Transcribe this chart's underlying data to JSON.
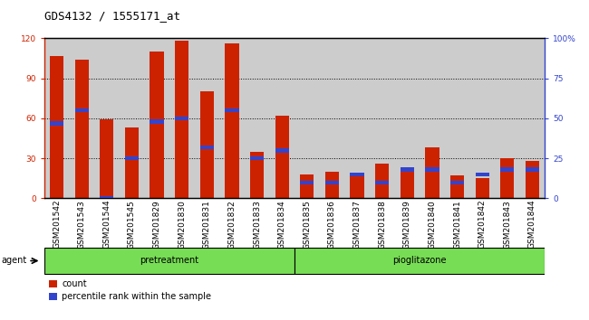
{
  "title": "GDS4132 / 1555171_at",
  "categories": [
    "GSM201542",
    "GSM201543",
    "GSM201544",
    "GSM201545",
    "GSM201829",
    "GSM201830",
    "GSM201831",
    "GSM201832",
    "GSM201833",
    "GSM201834",
    "GSM201835",
    "GSM201836",
    "GSM201837",
    "GSM201838",
    "GSM201839",
    "GSM201840",
    "GSM201841",
    "GSM201842",
    "GSM201843",
    "GSM201844"
  ],
  "count_values": [
    107,
    104,
    59,
    53,
    110,
    118,
    80,
    116,
    35,
    62,
    18,
    20,
    17,
    26,
    22,
    38,
    17,
    15,
    30,
    28
  ],
  "percentile_values": [
    47,
    55,
    0,
    25,
    48,
    50,
    32,
    55,
    25,
    30,
    10,
    10,
    15,
    10,
    18,
    18,
    10,
    15,
    18,
    18
  ],
  "groups": [
    {
      "label": "pretreatment",
      "start": 0,
      "end": 10
    },
    {
      "label": "pioglitazone",
      "start": 10,
      "end": 20
    }
  ],
  "ylim_left": [
    0,
    120
  ],
  "ylim_right": [
    0,
    100
  ],
  "yticks_left": [
    0,
    30,
    60,
    90,
    120
  ],
  "yticks_right": [
    0,
    25,
    50,
    75,
    100
  ],
  "bar_color": "#cc2200",
  "blue_color": "#3344cc",
  "col_bg_color": "#cccccc",
  "group_color": "#77dd55",
  "title_fontsize": 9,
  "tick_fontsize": 6.5,
  "label_fontsize": 8,
  "agent_label": "agent",
  "legend_count": "count",
  "legend_percentile": "percentile rank within the sample",
  "bar_width": 0.55
}
